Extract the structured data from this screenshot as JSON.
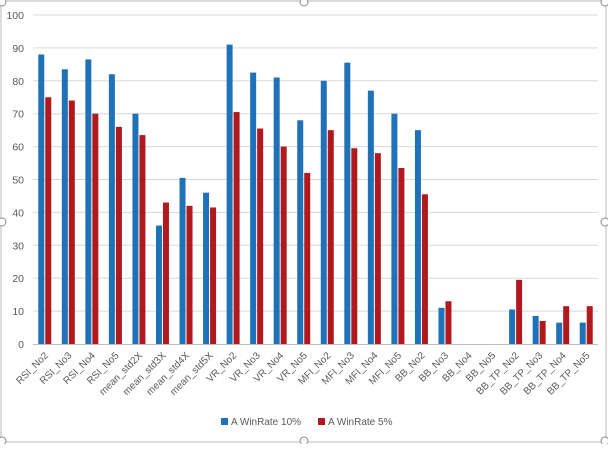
{
  "chart_data": {
    "type": "bar",
    "title": "",
    "xlabel": "",
    "ylabel": "",
    "ylim": [
      0,
      100
    ],
    "ytick_step": 10,
    "grid": true,
    "legend_position": "bottom-center",
    "categories": [
      "RSI_No2",
      "RSI_No3",
      "RSI_No4",
      "RSI_No5",
      "mean_std2X",
      "mean_std3X",
      "mean_std4X",
      "mean_std5X",
      "VR_No2",
      "VR_No3",
      "VR_No4",
      "VR_No5",
      "MFI_No2",
      "MFI_No3",
      "MFI_No4",
      "MFI_No5",
      "BB_No2",
      "BB_No3",
      "BB_No4",
      "BB_No5",
      "BB_TP_No2",
      "BB_TP_No3",
      "BB_TP_No4",
      "BB_TP_No5"
    ],
    "series": [
      {
        "name": "A WinRate 10%",
        "color": "#1f72b8",
        "values": [
          88,
          83.5,
          86.5,
          82,
          70,
          36,
          50.5,
          46,
          91,
          82.5,
          81,
          68,
          80,
          85.5,
          77,
          70,
          65,
          11,
          0,
          0,
          10.5,
          8.5,
          6.5,
          6.5
        ]
      },
      {
        "name": "A WinRate 5%",
        "color": "#b01a1e",
        "values": [
          75,
          74,
          70,
          66,
          63.5,
          43,
          42,
          41.5,
          70.5,
          65.5,
          60,
          52,
          65,
          59.5,
          58,
          53.5,
          45.5,
          13,
          0,
          0,
          19.5,
          7,
          11.5,
          11.5
        ]
      }
    ]
  }
}
